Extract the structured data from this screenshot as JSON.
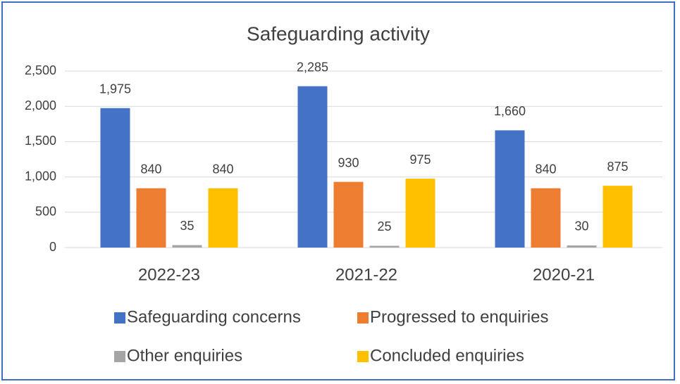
{
  "chart_data": {
    "type": "bar",
    "title": "Safeguarding activity",
    "categories": [
      "2022-23",
      "2021-22",
      "2020-21"
    ],
    "series": [
      {
        "name": "Safeguarding concerns",
        "color": "#4472c4",
        "values": [
          1975,
          2285,
          1660
        ],
        "value_labels": [
          "1,975",
          "2,285",
          "1,660"
        ]
      },
      {
        "name": "Progressed to enquiries",
        "color": "#ed7d31",
        "values": [
          840,
          930,
          840
        ]
      },
      {
        "name": "Other enquiries",
        "color": "#a5a5a5",
        "values": [
          35,
          25,
          30
        ]
      },
      {
        "name": "Concluded enquiries",
        "color": "#ffc000",
        "values": [
          840,
          975,
          875
        ]
      }
    ],
    "ylim": [
      0,
      2500
    ],
    "yticks": [
      0,
      500,
      {
        "value": 1000,
        "label": "1,000"
      },
      {
        "value": 1500,
        "label": "1,500"
      },
      {
        "value": 2000,
        "label": "2,000"
      },
      {
        "value": 2500,
        "label": "2,500"
      }
    ],
    "grid": true,
    "legend": "bottom"
  }
}
